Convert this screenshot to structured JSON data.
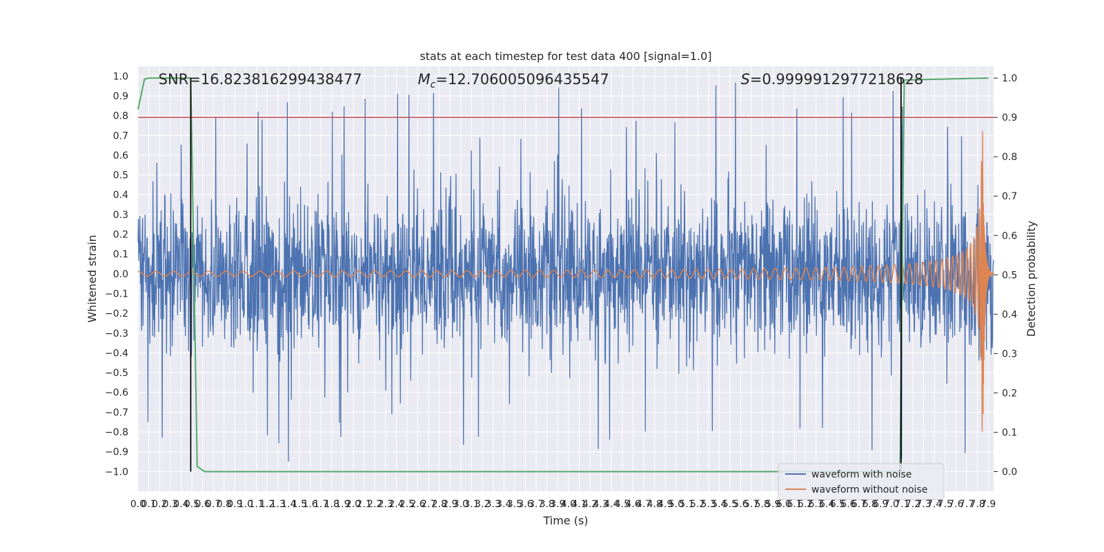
{
  "chart_data": {
    "type": "line",
    "title": "stats at each timestep for test data 400 [signal=1.0]",
    "xlabel": "Time (s)",
    "ylabel": "Whitened strain",
    "y2label": "Detection probability",
    "xlim": [
      0.0,
      7.95
    ],
    "ylim": [
      -1.1,
      1.05
    ],
    "y2lim": [
      -0.05,
      1.03
    ],
    "xticks": [
      0.0,
      0.1,
      0.2,
      0.3,
      0.4,
      0.5,
      0.6,
      0.7,
      0.8,
      0.9,
      1.0,
      1.1,
      1.2,
      1.3,
      1.4,
      1.5,
      1.6,
      1.7,
      1.8,
      1.9,
      2.0,
      2.1,
      2.2,
      2.3,
      2.4,
      2.5,
      2.6,
      2.7,
      2.8,
      2.9,
      3.0,
      3.1,
      3.2,
      3.3,
      3.4,
      3.5,
      3.6,
      3.7,
      3.8,
      3.9,
      4.0,
      4.1,
      4.2,
      4.3,
      4.4,
      4.5,
      4.6,
      4.7,
      4.8,
      4.9,
      5.0,
      5.1,
      5.2,
      5.3,
      5.4,
      5.5,
      5.6,
      5.7,
      5.8,
      5.9,
      6.0,
      6.1,
      6.2,
      6.3,
      6.4,
      6.5,
      6.6,
      6.7,
      6.8,
      6.9,
      7.0,
      7.1,
      7.2,
      7.3,
      7.4,
      7.5,
      7.6,
      7.7,
      7.8,
      7.9
    ],
    "yticks": [
      -1.0,
      -0.9,
      -0.8,
      -0.7,
      -0.6,
      -0.5,
      -0.4,
      -0.3,
      -0.2,
      -0.1,
      0.0,
      0.1,
      0.2,
      0.3,
      0.4,
      0.5,
      0.6,
      0.7,
      0.8,
      0.9,
      1.0
    ],
    "y2ticks": [
      0.0,
      0.1,
      0.2,
      0.3,
      0.4,
      0.5,
      0.6,
      0.7,
      0.8,
      0.9,
      1.0
    ],
    "grid": true,
    "legend_position": "lower-right",
    "series": [
      {
        "name": "waveform with noise",
        "color": "#4c72b0",
        "style": "noise",
        "amplitude_typical": 0.45,
        "amplitude_peak": 0.97
      },
      {
        "name": "waveform without noise",
        "color": "#dd8452",
        "style": "chirp",
        "t_start": 0.0,
        "t_merger": 7.85,
        "amp_start": 0.012,
        "amp_peak": 0.8
      }
    ],
    "detection_probability": {
      "color": "#55a868",
      "x": [
        0.0,
        0.06,
        0.1,
        0.49,
        0.55,
        0.62,
        7.08,
        7.12,
        7.9
      ],
      "y": [
        0.92,
        0.997,
        1.0,
        1.0,
        0.013,
        0.0,
        0.0,
        0.995,
        1.0
      ]
    },
    "threshold_line": {
      "color": "#c44e52",
      "y2": 0.9
    },
    "vertical_lines": {
      "color": "#000000",
      "x": [
        0.49,
        7.09
      ]
    },
    "annotations": [
      {
        "text": "SNR=16.823816299438477",
        "x": 0.19
      },
      {
        "text": "M_c=12.706005096435547",
        "x": 2.6
      },
      {
        "text": "S=0.9999912977218628",
        "x": 5.6
      }
    ]
  }
}
